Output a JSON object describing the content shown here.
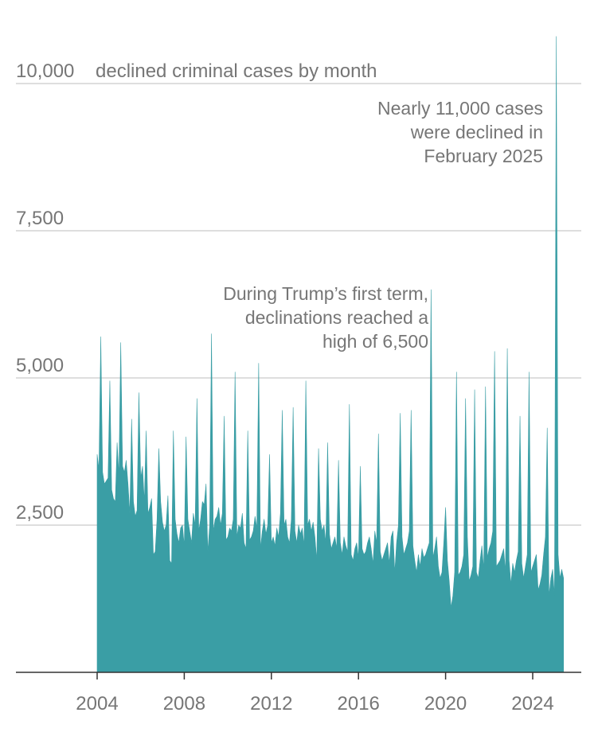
{
  "chart_data": {
    "type": "area",
    "y_label": "declined criminal cases by month",
    "annotations": [
      {
        "lines": [
          "Nearly 11,000 cases",
          "were declined in",
          "February 2025"
        ]
      },
      {
        "lines": [
          "During Trump’s first term,",
          "declinations reached a",
          "high of 6,500"
        ]
      }
    ],
    "color": "#3a9ea5",
    "grid": true,
    "ylim": [
      0,
      11000
    ],
    "yticks": [
      {
        "value": 2500,
        "label": "2,500"
      },
      {
        "value": 5000,
        "label": "5,000"
      },
      {
        "value": 7500,
        "label": "7,500"
      },
      {
        "value": 10000,
        "label": "10,000"
      }
    ],
    "categories": [
      "2004",
      null,
      null,
      null,
      null,
      null,
      null,
      null,
      null,
      null,
      null,
      null,
      null,
      null,
      null,
      null,
      null,
      null,
      null,
      null,
      null,
      null,
      null,
      null,
      null,
      null,
      null,
      null,
      null,
      null,
      null,
      null,
      null,
      null,
      null,
      null,
      null,
      null,
      null,
      null,
      null,
      null,
      null,
      null,
      null,
      null,
      null,
      null,
      "2008",
      null,
      null,
      null,
      null,
      null,
      null,
      null,
      null,
      null,
      null,
      null,
      null,
      null,
      null,
      null,
      null,
      null,
      null,
      null,
      null,
      null,
      null,
      null,
      null,
      null,
      null,
      null,
      null,
      null,
      null,
      null,
      null,
      null,
      null,
      null,
      null,
      null,
      null,
      null,
      null,
      null,
      null,
      null,
      null,
      null,
      null,
      null,
      "2012",
      null,
      null,
      null,
      null,
      null,
      null,
      null,
      null,
      null,
      null,
      null,
      null,
      null,
      null,
      null,
      null,
      null,
      null,
      null,
      null,
      null,
      null,
      null,
      null,
      null,
      null,
      null,
      null,
      null,
      null,
      null,
      null,
      null,
      null,
      null,
      null,
      null,
      null,
      null,
      null,
      null,
      null,
      null,
      null,
      null,
      null,
      null,
      "2016",
      null,
      null,
      null,
      null,
      null,
      null,
      null,
      null,
      null,
      null,
      null,
      null,
      null,
      null,
      null,
      null,
      null,
      null,
      null,
      null,
      null,
      null,
      null,
      null,
      null,
      null,
      null,
      null,
      null,
      null,
      null,
      null,
      null,
      null,
      null,
      null,
      null,
      null,
      null,
      null,
      null,
      null,
      null,
      null,
      null,
      null,
      null,
      "2020",
      null,
      null,
      null,
      null,
      null,
      null,
      null,
      null,
      null,
      null,
      null,
      null,
      null,
      null,
      null,
      null,
      null,
      null,
      null,
      null,
      null,
      null,
      null,
      null,
      null,
      null,
      null,
      null,
      null,
      null,
      null,
      null,
      null,
      null,
      null,
      null,
      null,
      null,
      null,
      null,
      null,
      null,
      null,
      null,
      null,
      null,
      null,
      "2024",
      null,
      null,
      null,
      null,
      null,
      null,
      null,
      null,
      null,
      null,
      null,
      null,
      null,
      null,
      null,
      null,
      null
    ],
    "values": [
      3700,
      3450,
      5700,
      3400,
      3200,
      3250,
      3300,
      4950,
      3100,
      2950,
      2900,
      3900,
      3350,
      5600,
      3500,
      3400,
      3600,
      3200,
      2700,
      4300,
      2900,
      2650,
      2750,
      4750,
      3300,
      3500,
      2900,
      4100,
      2700,
      2800,
      2950,
      2000,
      2050,
      2600,
      3800,
      2900,
      2550,
      2400,
      2500,
      3000,
      1900,
      1850,
      4100,
      2600,
      2350,
      2200,
      2450,
      2500,
      2150,
      4000,
      2600,
      2400,
      2200,
      2700,
      2500,
      4650,
      2400,
      2600,
      2900,
      2850,
      3200,
      2050,
      2500,
      5750,
      2400,
      2600,
      2650,
      2800,
      2500,
      2700,
      4350,
      2250,
      2300,
      2450,
      2400,
      2600,
      5100,
      2300,
      2500,
      2450,
      2700,
      2200,
      2100,
      4100,
      2250,
      2300,
      2400,
      2650,
      2450,
      5250,
      2100,
      2400,
      2600,
      2350,
      2500,
      3700,
      2200,
      2300,
      2150,
      2450,
      2300,
      2700,
      4450,
      2500,
      2600,
      2300,
      2200,
      2600,
      4500,
      2400,
      2200,
      2500,
      2350,
      2450,
      2150,
      4950,
      2500,
      2600,
      2400,
      2550,
      2300,
      1900,
      3800,
      2600,
      2400,
      2500,
      2200,
      3900,
      2350,
      2100,
      2200,
      2300,
      2100,
      3600,
      2200,
      2000,
      2300,
      2150,
      2050,
      4550,
      2000,
      1900,
      2100,
      2200,
      1950,
      3500,
      2100,
      2000,
      2050,
      2200,
      2300,
      2100,
      1850,
      2400,
      2200,
      4050,
      2050,
      1900,
      2000,
      2100,
      2200,
      1850,
      2300,
      2400,
      1700,
      2200,
      2500,
      4400,
      2300,
      2000,
      2100,
      2200,
      2400,
      4450,
      2150,
      1900,
      1700,
      2000,
      1800,
      2100,
      1950,
      2000,
      2100,
      2200,
      6500,
      1950,
      2100,
      2300,
      1800,
      1600,
      1700,
      2200,
      2800,
      1900,
      1550,
      1100,
      1300,
      1700,
      5100,
      1650,
      1700,
      1800,
      2000,
      4650,
      2300,
      1550,
      1650,
      1800,
      4800,
      1700,
      1600,
      1900,
      2150,
      1750,
      4850,
      1950,
      2100,
      2200,
      2400,
      5450,
      1800,
      1850,
      1900,
      2000,
      2100,
      1700,
      5500,
      1900,
      1500,
      1850,
      1700,
      1900,
      2050,
      4350,
      1850,
      1600,
      1800,
      2000,
      5100,
      1700,
      1800,
      1900,
      2000,
      1400,
      1500,
      1650,
      2000,
      2300,
      4150,
      1300,
      1600,
      1750,
      1300,
      10800,
      2000,
      1600,
      1750,
      1600
    ]
  }
}
